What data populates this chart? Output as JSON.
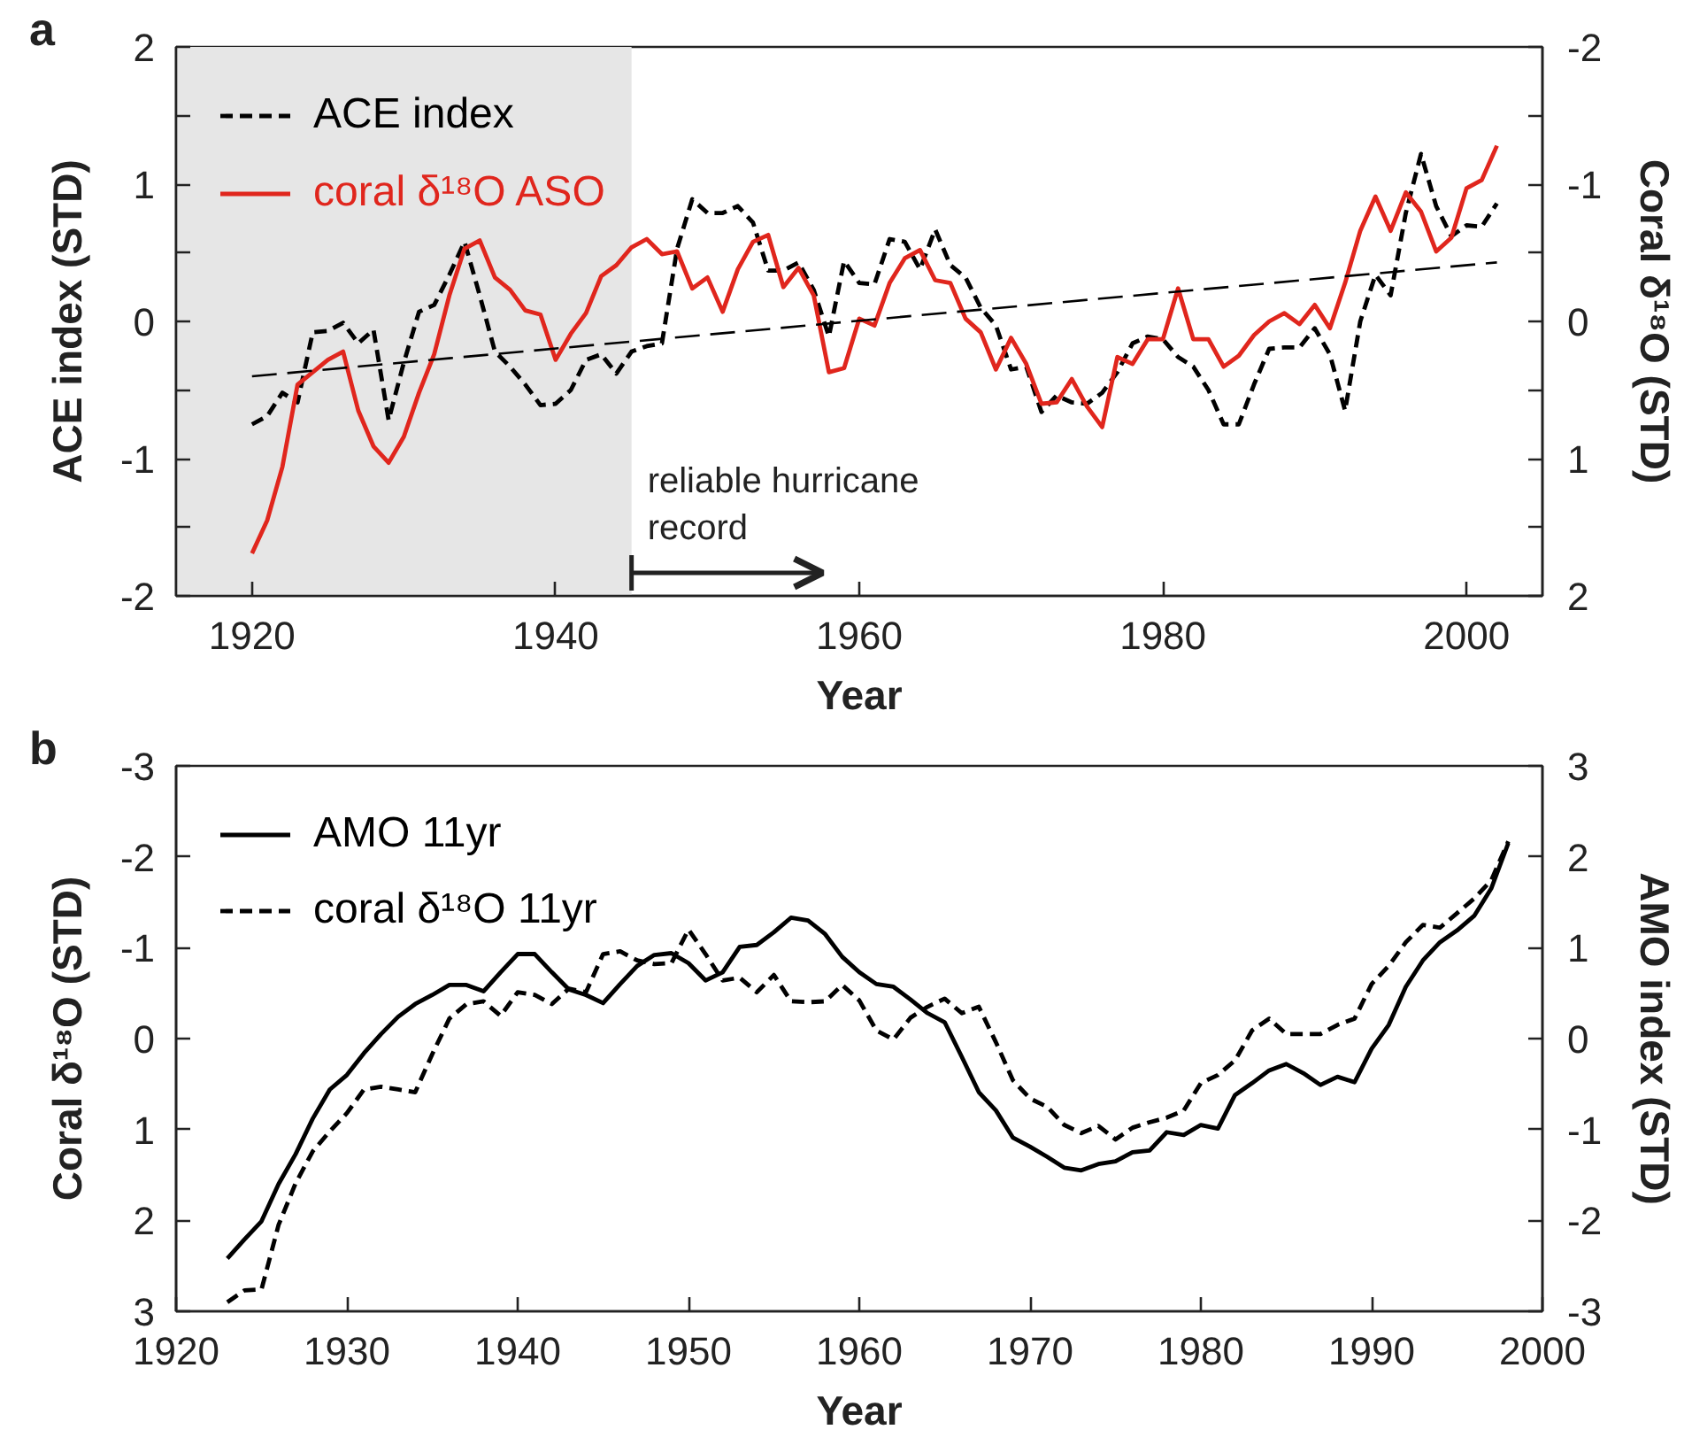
{
  "chart_data": [
    {
      "type": "line",
      "title": "a",
      "xlabel": "Year",
      "ylabel": "ACE index (STD)",
      "y2label": "Coral δ¹⁸O (STD)",
      "xlim": [
        1915,
        2005
      ],
      "xticks": [
        1920,
        1940,
        1960,
        1980,
        2000
      ],
      "ylim": [
        -2,
        2
      ],
      "yticks": [
        -2,
        {
          "value": -1.5,
          "label": null
        },
        -1,
        {
          "value": -0.5,
          "label": null
        },
        0,
        {
          "value": 0.5,
          "label": null
        },
        1,
        {
          "value": 1.5,
          "label": null
        },
        2
      ],
      "y2lim": [
        2,
        -2
      ],
      "y2ticks": [
        2,
        {
          "value": 1.5,
          "label": null
        },
        1,
        {
          "value": 0.5,
          "label": null
        },
        0,
        {
          "value": -0.5,
          "label": null
        },
        -1,
        {
          "value": -1.5,
          "label": null
        },
        -2
      ],
      "grid": false,
      "legend": "top left",
      "x": [
        1920,
        1921,
        1922,
        1923,
        1924,
        1925,
        1926,
        1927,
        1928,
        1929,
        1930,
        1931,
        1932,
        1933,
        1934,
        1935,
        1936,
        1937,
        1938,
        1939,
        1940,
        1941,
        1942,
        1943,
        1944,
        1945,
        1946,
        1947,
        1948,
        1949,
        1950,
        1951,
        1952,
        1953,
        1954,
        1955,
        1956,
        1957,
        1958,
        1959,
        1960,
        1961,
        1962,
        1963,
        1964,
        1965,
        1966,
        1967,
        1968,
        1969,
        1970,
        1971,
        1972,
        1973,
        1974,
        1975,
        1976,
        1977,
        1978,
        1979,
        1980,
        1981,
        1982,
        1983,
        1984,
        1985,
        1986,
        1987,
        1988,
        1989,
        1990,
        1991,
        1992,
        1993,
        1994,
        1995,
        1996,
        1997,
        1998,
        1999,
        2000,
        2001,
        2002
      ],
      "series": [
        {
          "name": "ACE index",
          "color": "#000000",
          "line_style": "dashed",
          "values": [
            -0.75,
            -0.69,
            -0.52,
            -0.59,
            -0.08,
            -0.07,
            -0.01,
            -0.16,
            -0.06,
            -0.72,
            -0.3,
            0.07,
            0.12,
            0.34,
            0.58,
            0.19,
            -0.22,
            -0.33,
            -0.46,
            -0.61,
            -0.6,
            -0.5,
            -0.28,
            -0.24,
            -0.38,
            -0.22,
            -0.18,
            -0.16,
            0.53,
            0.89,
            0.79,
            0.79,
            0.84,
            0.72,
            0.37,
            0.37,
            0.43,
            0.23,
            -0.11,
            0.44,
            0.28,
            0.27,
            0.6,
            0.58,
            0.38,
            0.67,
            0.41,
            0.32,
            0.1,
            -0.03,
            -0.35,
            -0.33,
            -0.66,
            -0.54,
            -0.59,
            -0.6,
            -0.52,
            -0.37,
            -0.16,
            -0.11,
            -0.13,
            -0.26,
            -0.33,
            -0.5,
            -0.75,
            -0.75,
            -0.46,
            -0.2,
            -0.19,
            -0.19,
            -0.05,
            -0.24,
            -0.65,
            0.0,
            0.34,
            0.19,
            0.79,
            1.22,
            0.84,
            0.62,
            0.7,
            0.69,
            0.86
          ]
        },
        {
          "name": "coral δ¹⁸O ASO",
          "color": "#e0261d",
          "axis": "y2",
          "values": [
            1.69,
            1.45,
            1.06,
            0.46,
            0.37,
            0.28,
            0.22,
            0.65,
            0.91,
            1.03,
            0.84,
            0.52,
            0.24,
            -0.19,
            -0.53,
            -0.59,
            -0.32,
            -0.23,
            -0.08,
            -0.05,
            0.28,
            0.09,
            -0.06,
            -0.33,
            -0.41,
            -0.54,
            -0.6,
            -0.49,
            -0.51,
            -0.24,
            -0.32,
            -0.07,
            -0.38,
            -0.58,
            -0.63,
            -0.25,
            -0.39,
            -0.19,
            0.37,
            0.34,
            -0.02,
            0.03,
            -0.28,
            -0.46,
            -0.52,
            -0.3,
            -0.28,
            -0.02,
            0.08,
            0.35,
            0.12,
            0.31,
            0.6,
            0.59,
            0.42,
            0.62,
            0.77,
            0.26,
            0.31,
            0.13,
            0.13,
            -0.24,
            0.13,
            0.13,
            0.33,
            0.25,
            0.1,
            0.0,
            -0.06,
            0.02,
            -0.12,
            0.05,
            -0.28,
            -0.66,
            -0.91,
            -0.66,
            -0.94,
            -0.8,
            -0.51,
            -0.61,
            -0.97,
            -1.03,
            -1.28
          ]
        },
        {
          "x": [
            1920,
            2002
          ],
          "color": "#000000",
          "line_style": "dashed",
          "values": [
            -0.4,
            0.43
          ]
        }
      ],
      "bands": [
        {
          "axis": "x",
          "from": 1915,
          "to": 1945,
          "color": "#e6e6e6"
        }
      ],
      "annotations": [
        "reliable hurricane\nrecord"
      ]
    },
    {
      "type": "line",
      "title": "b",
      "xlabel": "Year",
      "ylabel": "Coral δ¹⁸O (STD)",
      "y2label": "AMO index (STD)",
      "xlim": [
        1920,
        2000
      ],
      "xticks": [
        1920,
        1930,
        1940,
        1950,
        1960,
        1970,
        1980,
        1990,
        2000
      ],
      "ylim": [
        3,
        -3
      ],
      "yticks": [
        3,
        2,
        1,
        0,
        -1,
        -2,
        -3
      ],
      "y2lim": [
        -3,
        3
      ],
      "y2ticks": [
        -3,
        -2,
        -1,
        0,
        1,
        2,
        3
      ],
      "grid": false,
      "legend": "top left",
      "x": [
        1923,
        1924,
        1925,
        1926,
        1927,
        1928,
        1929,
        1930,
        1931,
        1932,
        1933,
        1934,
        1935,
        1936,
        1937,
        1938,
        1939,
        1940,
        1941,
        1942,
        1943,
        1944,
        1945,
        1946,
        1947,
        1948,
        1949,
        1950,
        1951,
        1952,
        1953,
        1954,
        1955,
        1956,
        1957,
        1958,
        1959,
        1960,
        1961,
        1962,
        1963,
        1964,
        1965,
        1966,
        1967,
        1968,
        1969,
        1970,
        1971,
        1972,
        1973,
        1974,
        1975,
        1976,
        1977,
        1978,
        1979,
        1980,
        1981,
        1982,
        1983,
        1984,
        1985,
        1986,
        1987,
        1988,
        1989,
        1990,
        1991,
        1992,
        1993,
        1994,
        1995,
        1996,
        1997,
        1998
      ],
      "series": [
        {
          "name": "AMO 11yr",
          "color": "#000000",
          "axis": "y2",
          "line_style": "solid",
          "values": [
            -2.42,
            -2.21,
            -2.01,
            -1.6,
            -1.27,
            -0.88,
            -0.56,
            -0.4,
            -0.16,
            0.05,
            0.24,
            0.38,
            0.48,
            0.59,
            0.59,
            0.52,
            0.73,
            0.93,
            0.93,
            0.73,
            0.54,
            0.48,
            0.39,
            0.6,
            0.8,
            0.92,
            0.94,
            0.83,
            0.64,
            0.73,
            1.01,
            1.03,
            1.17,
            1.33,
            1.3,
            1.15,
            0.9,
            0.73,
            0.6,
            0.57,
            0.43,
            0.28,
            0.18,
            -0.2,
            -0.59,
            -0.79,
            -1.09,
            -1.19,
            -1.3,
            -1.42,
            -1.45,
            -1.38,
            -1.35,
            -1.25,
            -1.23,
            -1.03,
            -1.06,
            -0.95,
            -0.99,
            -0.62,
            -0.49,
            -0.35,
            -0.28,
            -0.38,
            -0.51,
            -0.42,
            -0.48,
            -0.11,
            0.15,
            0.57,
            0.86,
            1.06,
            1.19,
            1.35,
            1.65,
            2.15
          ]
        },
        {
          "name": "coral δ¹⁸O 11yr",
          "color": "#000000",
          "line_style": "dashed",
          "values": [
            2.9,
            2.77,
            2.76,
            2.05,
            1.59,
            1.24,
            1.02,
            0.82,
            0.56,
            0.53,
            0.56,
            0.59,
            0.17,
            -0.22,
            -0.38,
            -0.41,
            -0.25,
            -0.51,
            -0.48,
            -0.38,
            -0.55,
            -0.51,
            -0.93,
            -0.96,
            -0.86,
            -0.82,
            -0.83,
            -1.2,
            -0.93,
            -0.64,
            -0.67,
            -0.51,
            -0.7,
            -0.41,
            -0.4,
            -0.41,
            -0.59,
            -0.42,
            -0.09,
            0.01,
            -0.23,
            -0.35,
            -0.44,
            -0.28,
            -0.35,
            0.04,
            0.46,
            0.66,
            0.75,
            0.95,
            1.04,
            0.96,
            1.11,
            0.98,
            0.92,
            0.87,
            0.79,
            0.49,
            0.4,
            0.24,
            -0.09,
            -0.22,
            -0.05,
            -0.05,
            -0.05,
            -0.15,
            -0.22,
            -0.6,
            -0.8,
            -1.06,
            -1.25,
            -1.22,
            -1.38,
            -1.54,
            -1.74,
            -2.17
          ]
        }
      ]
    }
  ]
}
